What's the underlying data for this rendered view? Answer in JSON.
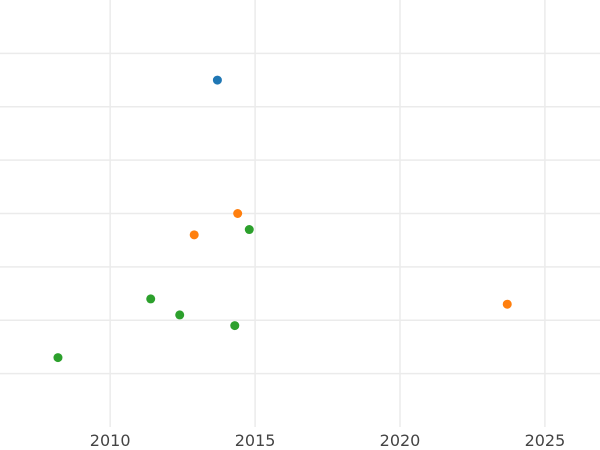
{
  "chart_data": {
    "type": "scatter",
    "title": "",
    "xlabel": "",
    "ylabel": "",
    "xlim": [
      2006.2,
      2026.9
    ],
    "ylim": [
      0,
      8
    ],
    "x_ticks": [
      2010,
      2015,
      2020,
      2025
    ],
    "x_tick_labels": [
      "2010",
      "2015",
      "2020",
      "2025"
    ],
    "y_grid": [
      1,
      2,
      3,
      4,
      5,
      6,
      7
    ],
    "y_tick_labels_shown": false,
    "grid": true,
    "legend": "none",
    "series": [
      {
        "color": "#1f77b4",
        "points": [
          {
            "x": 2013.7,
            "y": 6.5
          }
        ]
      },
      {
        "color": "#ff7f0e",
        "points": [
          {
            "x": 2014.4,
            "y": 4.0
          },
          {
            "x": 2012.9,
            "y": 3.6
          },
          {
            "x": 2023.7,
            "y": 2.3
          }
        ]
      },
      {
        "color": "#2ca02c",
        "points": [
          {
            "x": 2014.8,
            "y": 3.7
          },
          {
            "x": 2011.4,
            "y": 2.4
          },
          {
            "x": 2012.4,
            "y": 2.1
          },
          {
            "x": 2014.3,
            "y": 1.9
          },
          {
            "x": 2008.2,
            "y": 1.3
          }
        ]
      }
    ]
  }
}
